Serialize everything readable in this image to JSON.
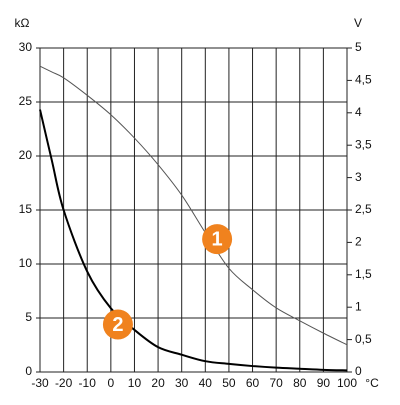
{
  "chart_data": {
    "type": "line",
    "y_label": "kΩ",
    "y2_label": "V",
    "x_label": "°C",
    "x": [
      -30,
      -25,
      -20,
      -10,
      0,
      10,
      20,
      30,
      40,
      50,
      60,
      70,
      80,
      90,
      100
    ],
    "series": [
      {
        "name": "1",
        "color": "#555555",
        "axis": "y2",
        "width": 1,
        "values": [
          4.72,
          4.63,
          4.54,
          4.27,
          3.97,
          3.61,
          3.2,
          2.73,
          2.15,
          1.6,
          1.27,
          0.99,
          0.79,
          0.6,
          0.42
        ]
      },
      {
        "name": "2",
        "color": "#000000",
        "axis": "y",
        "width": 2,
        "values": [
          24.3,
          19.6,
          15,
          9.3,
          5.9,
          3.9,
          2.3,
          1.6,
          1.0,
          0.75,
          0.55,
          0.4,
          0.3,
          0.2,
          0.15
        ]
      }
    ],
    "marker_color": "#f0821e",
    "xlim": [
      -30,
      100
    ],
    "xticks": [
      -30,
      -20,
      -10,
      0,
      10,
      20,
      30,
      40,
      50,
      60,
      70,
      80,
      90,
      100
    ],
    "ylim": [
      0,
      30
    ],
    "yticks": [
      0,
      5,
      10,
      15,
      20,
      25,
      30
    ],
    "y2lim": [
      0,
      5
    ],
    "y2ticks": [
      0,
      {
        "value": 0.5,
        "label": "0,5"
      },
      1,
      {
        "value": 1.5,
        "label": "1,5"
      },
      2,
      {
        "value": 2.5,
        "label": "2,5"
      },
      3,
      {
        "value": 3.5,
        "label": "3,5"
      },
      4,
      {
        "value": 4.5,
        "label": "4,5"
      },
      5
    ],
    "grid": true
  }
}
